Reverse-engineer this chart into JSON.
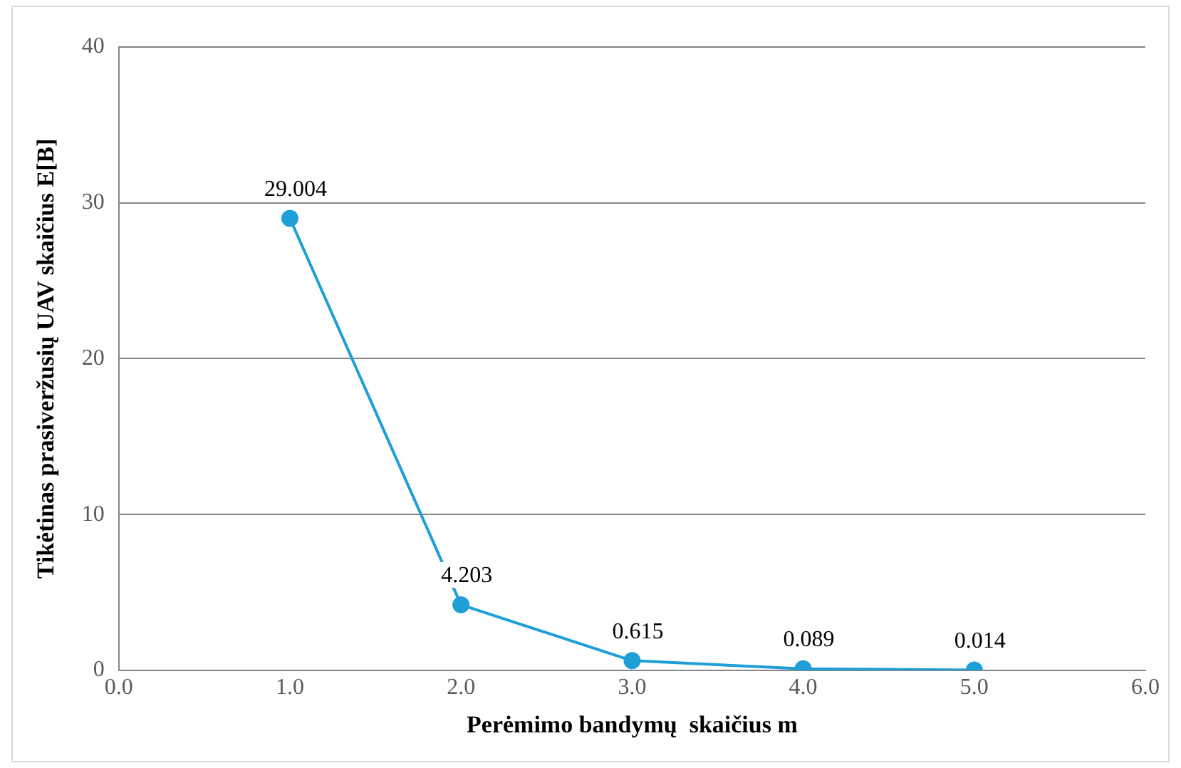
{
  "chart_data": {
    "type": "line",
    "xlabel": "Perėmimo bandymų  skaičius m",
    "ylabel": "Tikėtinas prasiveržusių UAV skaičius E[B]",
    "x": [
      1,
      2,
      3,
      4,
      5
    ],
    "series": [
      {
        "color": "#1f9fd8",
        "values": [
          29.004,
          4.203,
          0.615,
          0.089,
          0.014
        ]
      }
    ],
    "xlim": [
      0,
      6
    ],
    "xticks": [
      {
        "value": 0,
        "label": "0.0"
      },
      {
        "value": 1,
        "label": "1.0"
      },
      {
        "value": 2,
        "label": "2.0"
      },
      {
        "value": 3,
        "label": "3.0"
      },
      {
        "value": 4,
        "label": "4.0"
      },
      {
        "value": 5,
        "label": "5.0"
      },
      {
        "value": 6,
        "label": "6.0"
      }
    ],
    "ylim": [
      0,
      40
    ],
    "yticks": [
      0,
      10,
      20,
      30,
      40
    ],
    "grid": "y",
    "marker": "circle",
    "line_style": "solid",
    "data_labels": true,
    "legend": false
  }
}
